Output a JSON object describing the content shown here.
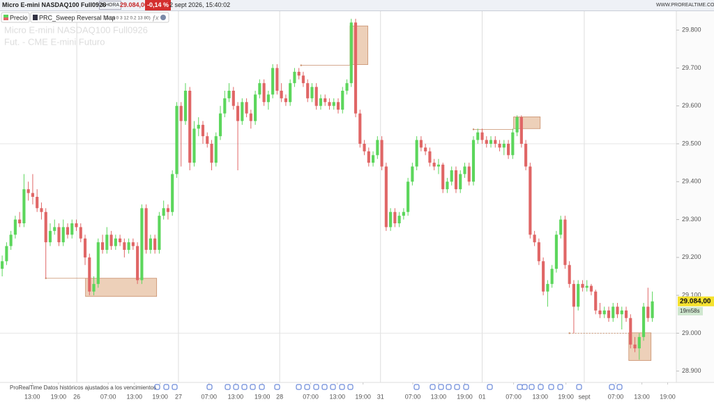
{
  "header": {
    "instrument": "Micro E-mini NASDAQ100 Full0926",
    "timeframe": "1 HORA",
    "price": "29.084,00",
    "change": "-0,14 %",
    "datetime": "2 sept 2026, 15:40:02",
    "site": "WWW.PROREALTIME.COM"
  },
  "legend": {
    "price": "Precio",
    "indicator": "PRC_Sweep Reversal Map",
    "params": "(5 14 0 3 12 0.2 13 80)"
  },
  "watermark": {
    "line1": "Micro E-mini NASDAQ100 Full0926",
    "line2": "Fut. - CME E-mini  Futuro"
  },
  "footer": "ProRealTime Datos históricos ajustados a los vencimientos",
  "chart_data": {
    "type": "candlestick",
    "up_color": "#5cd65c",
    "down_color": "#e06666",
    "zone_color": "#e8c4a8",
    "ylim": [
      28870,
      29850
    ],
    "yticks": [
      {
        "value": 28900,
        "label": "28.900"
      },
      {
        "value": 29000,
        "label": "29.000"
      },
      {
        "value": 29100,
        "label": "29.100"
      },
      {
        "value": 29200,
        "label": "29.200"
      },
      {
        "value": 29300,
        "label": "29.300"
      },
      {
        "value": 29400,
        "label": "29.400"
      },
      {
        "value": 29500,
        "label": "29.500"
      },
      {
        "value": 29600,
        "label": "29.600"
      },
      {
        "value": 29700,
        "label": "29.700"
      },
      {
        "value": 29800,
        "label": "29.800"
      }
    ],
    "xlim": [
      -0.5,
      154.5
    ],
    "xticks": [
      {
        "value": 6.9,
        "label": "13:00"
      },
      {
        "value": 12.9,
        "label": "19:00"
      },
      {
        "value": 17.1,
        "label": "26"
      },
      {
        "value": 24.3,
        "label": "07:00"
      },
      {
        "value": 30.3,
        "label": "13:00"
      },
      {
        "value": 36.2,
        "label": "19:00"
      },
      {
        "value": 40.4,
        "label": "27"
      },
      {
        "value": 47.4,
        "label": "07:00"
      },
      {
        "value": 53.5,
        "label": "13:00"
      },
      {
        "value": 59.6,
        "label": "19:00"
      },
      {
        "value": 63.6,
        "label": "28"
      },
      {
        "value": 70.7,
        "label": "07:00"
      },
      {
        "value": 76.8,
        "label": "13:00"
      },
      {
        "value": 82.7,
        "label": "19:00"
      },
      {
        "value": 86.7,
        "label": "31"
      },
      {
        "value": 94.1,
        "label": "07:00"
      },
      {
        "value": 100,
        "label": "13:00"
      },
      {
        "value": 106,
        "label": "19:00"
      },
      {
        "value": 110,
        "label": "01"
      },
      {
        "value": 117.2,
        "label": "07:00"
      },
      {
        "value": 123.3,
        "label": "13:00"
      },
      {
        "value": 129.2,
        "label": "19:00"
      },
      {
        "value": 133.4,
        "label": "sept"
      },
      {
        "value": 140.6,
        "label": "07:00"
      },
      {
        "value": 146.6,
        "label": "13:00"
      },
      {
        "value": 152.5,
        "label": "19:00"
      }
    ],
    "candles": [
      [
        29170,
        29205,
        29150,
        29190
      ],
      [
        29190,
        29240,
        29180,
        29230
      ],
      [
        29230,
        29270,
        29220,
        29260
      ],
      [
        29260,
        29310,
        29250,
        29300
      ],
      [
        29300,
        29320,
        29280,
        29290
      ],
      [
        29290,
        29420,
        29280,
        29380
      ],
      [
        29380,
        29400,
        29350,
        29370
      ],
      [
        29370,
        29420,
        29340,
        29360
      ],
      [
        29360,
        29380,
        29320,
        29330
      ],
      [
        29330,
        29345,
        29300,
        29320
      ],
      [
        29320,
        29330,
        29145,
        29240
      ],
      [
        29240,
        29290,
        29230,
        29270
      ],
      [
        29270,
        29300,
        29260,
        29280
      ],
      [
        29280,
        29290,
        29230,
        29240
      ],
      [
        29240,
        29300,
        29230,
        29280
      ],
      [
        29280,
        29290,
        29250,
        29260
      ],
      [
        29260,
        29300,
        29250,
        29290
      ],
      [
        29290,
        29300,
        29270,
        29280
      ],
      [
        29280,
        29290,
        29240,
        29250
      ],
      [
        29250,
        29260,
        29180,
        29200
      ],
      [
        29200,
        29210,
        29100,
        29110
      ],
      [
        29110,
        29150,
        29100,
        29130
      ],
      [
        29130,
        29250,
        29120,
        29240
      ],
      [
        29240,
        29260,
        29210,
        29220
      ],
      [
        29220,
        29280,
        29210,
        29260
      ],
      [
        29260,
        29270,
        29220,
        29230
      ],
      [
        29230,
        29260,
        29220,
        29250
      ],
      [
        29250,
        29260,
        29230,
        29240
      ],
      [
        29240,
        29250,
        29200,
        29220
      ],
      [
        29220,
        29250,
        29210,
        29240
      ],
      [
        29240,
        29250,
        29220,
        29230
      ],
      [
        29230,
        29240,
        29130,
        29140
      ],
      [
        29140,
        29340,
        29130,
        29330
      ],
      [
        29330,
        29340,
        29210,
        29220
      ],
      [
        29220,
        29260,
        29210,
        29250
      ],
      [
        29250,
        29260,
        29210,
        29220
      ],
      [
        29220,
        29320,
        29210,
        29310
      ],
      [
        29310,
        29350,
        29300,
        29330
      ],
      [
        29330,
        29340,
        29300,
        29320
      ],
      [
        29320,
        29430,
        29310,
        29420
      ],
      [
        29420,
        29610,
        29410,
        29600
      ],
      [
        29600,
        29610,
        29440,
        29560
      ],
      [
        29560,
        29660,
        29550,
        29640
      ],
      [
        29640,
        29650,
        29430,
        29450
      ],
      [
        29450,
        29560,
        29440,
        29540
      ],
      [
        29540,
        29570,
        29520,
        29550
      ],
      [
        29550,
        29560,
        29500,
        29520
      ],
      [
        29520,
        29530,
        29490,
        29500
      ],
      [
        29500,
        29510,
        29430,
        29450
      ],
      [
        29450,
        29530,
        29440,
        29520
      ],
      [
        29520,
        29600,
        29510,
        29580
      ],
      [
        29580,
        29640,
        29570,
        29620
      ],
      [
        29620,
        29660,
        29610,
        29640
      ],
      [
        29640,
        29650,
        29590,
        29600
      ],
      [
        29600,
        29610,
        29430,
        29560
      ],
      [
        29560,
        29620,
        29550,
        29610
      ],
      [
        29610,
        29620,
        29570,
        29580
      ],
      [
        29580,
        29590,
        29540,
        29560
      ],
      [
        29560,
        29640,
        29550,
        29630
      ],
      [
        29630,
        29670,
        29620,
        29660
      ],
      [
        29660,
        29670,
        29600,
        29610
      ],
      [
        29610,
        29640,
        29590,
        29630
      ],
      [
        29630,
        29710,
        29620,
        29700
      ],
      [
        29700,
        29710,
        29630,
        29640
      ],
      [
        29640,
        29660,
        29610,
        29620
      ],
      [
        29620,
        29630,
        29600,
        29610
      ],
      [
        29610,
        29670,
        29600,
        29660
      ],
      [
        29660,
        29700,
        29650,
        29690
      ],
      [
        29690,
        29700,
        29670,
        29680
      ],
      [
        29680,
        29690,
        29650,
        29660
      ],
      [
        29660,
        29670,
        29610,
        29620
      ],
      [
        29620,
        29660,
        29610,
        29650
      ],
      [
        29650,
        29660,
        29590,
        29600
      ],
      [
        29600,
        29630,
        29590,
        29620
      ],
      [
        29620,
        29630,
        29600,
        29610
      ],
      [
        29610,
        29620,
        29590,
        29600
      ],
      [
        29600,
        29620,
        29590,
        29610
      ],
      [
        29610,
        29620,
        29580,
        29590
      ],
      [
        29590,
        29650,
        29580,
        29640
      ],
      [
        29640,
        29670,
        29630,
        29660
      ],
      [
        29660,
        29830,
        29650,
        29820
      ],
      [
        29820,
        29830,
        29570,
        29580
      ],
      [
        29580,
        29590,
        29490,
        29500
      ],
      [
        29500,
        29510,
        29470,
        29480
      ],
      [
        29480,
        29490,
        29440,
        29450
      ],
      [
        29450,
        29480,
        29440,
        29470
      ],
      [
        29470,
        29520,
        29460,
        29510
      ],
      [
        29510,
        29520,
        29430,
        29440
      ],
      [
        29440,
        29450,
        29270,
        29280
      ],
      [
        29280,
        29330,
        29270,
        29320
      ],
      [
        29320,
        29330,
        29280,
        29290
      ],
      [
        29290,
        29320,
        29280,
        29310
      ],
      [
        29310,
        29330,
        29300,
        29320
      ],
      [
        29320,
        29410,
        29310,
        29400
      ],
      [
        29400,
        29450,
        29390,
        29440
      ],
      [
        29440,
        29520,
        29430,
        29510
      ],
      [
        29510,
        29520,
        29480,
        29490
      ],
      [
        29490,
        29500,
        29470,
        29480
      ],
      [
        29480,
        29490,
        29440,
        29450
      ],
      [
        29450,
        29460,
        29430,
        29440
      ],
      [
        29440,
        29460,
        29420,
        29445
      ],
      [
        29445,
        29450,
        29370,
        29380
      ],
      [
        29380,
        29410,
        29370,
        29400
      ],
      [
        29400,
        29440,
        29390,
        29430
      ],
      [
        29430,
        29440,
        29370,
        29380
      ],
      [
        29380,
        29430,
        29370,
        29420
      ],
      [
        29420,
        29450,
        29410,
        29440
      ],
      [
        29440,
        29450,
        29390,
        29400
      ],
      [
        29400,
        29520,
        29390,
        29510
      ],
      [
        29510,
        29540,
        29500,
        29530
      ],
      [
        29530,
        29540,
        29500,
        29510
      ],
      [
        29510,
        29520,
        29490,
        29500
      ],
      [
        29500,
        29520,
        29490,
        29510
      ],
      [
        29510,
        29520,
        29490,
        29500
      ],
      [
        29500,
        29510,
        29480,
        29490
      ],
      [
        29490,
        29510,
        29470,
        29500
      ],
      [
        29500,
        29510,
        29460,
        29470
      ],
      [
        29470,
        29540,
        29460,
        29530
      ],
      [
        29530,
        29575,
        29520,
        29570
      ],
      [
        29570,
        29575,
        29490,
        29500
      ],
      [
        29500,
        29510,
        29430,
        29440
      ],
      [
        29440,
        29450,
        29250,
        29260
      ],
      [
        29260,
        29270,
        29230,
        29240
      ],
      [
        29240,
        29250,
        29180,
        29190
      ],
      [
        29190,
        29200,
        29100,
        29110
      ],
      [
        29110,
        29140,
        29070,
        29130
      ],
      [
        29130,
        29180,
        29120,
        29170
      ],
      [
        29170,
        29270,
        29160,
        29260
      ],
      [
        29260,
        29310,
        29250,
        29300
      ],
      [
        29300,
        29310,
        29170,
        29180
      ],
      [
        29180,
        29190,
        29120,
        29130
      ],
      [
        29130,
        29140,
        29000,
        29070
      ],
      [
        29070,
        29140,
        29060,
        29130
      ],
      [
        29130,
        29140,
        29110,
        29120
      ],
      [
        29120,
        29140,
        29110,
        29125
      ],
      [
        29125,
        29130,
        29100,
        29110
      ],
      [
        29110,
        29115,
        29050,
        29060
      ],
      [
        29060,
        29080,
        29040,
        29050
      ],
      [
        29050,
        29070,
        29040,
        29060
      ],
      [
        29060,
        29070,
        29030,
        29040
      ],
      [
        29040,
        29080,
        29030,
        29070
      ],
      [
        29070,
        29080,
        29040,
        29050
      ],
      [
        29050,
        29070,
        29010,
        29060
      ],
      [
        29060,
        29070,
        29030,
        29040
      ],
      [
        29040,
        29050,
        28960,
        28970
      ],
      [
        28970,
        28990,
        28950,
        28960
      ],
      [
        28960,
        29000,
        28930,
        28990
      ],
      [
        28990,
        29080,
        28980,
        29070
      ],
      [
        29070,
        29120,
        29030,
        29040
      ],
      [
        29040,
        29110,
        29030,
        29084
      ]
    ],
    "zones": [
      {
        "x1": 19.1,
        "x2": 35.4,
        "low": 29097,
        "high": 29145
      },
      {
        "x1": 79.7,
        "x2": 83.8,
        "low": 29709,
        "high": 29811
      },
      {
        "x1": 117.2,
        "x2": 123.3,
        "low": 29540,
        "high": 29571
      },
      {
        "x1": 143.6,
        "x2": 148.7,
        "low": 28928,
        "high": 29001
      }
    ],
    "sweep_lines": [
      {
        "x1": 10,
        "x2": 19.1,
        "level": 29145
      },
      {
        "x1": 68.5,
        "x2": 79.7,
        "level": 29707
      },
      {
        "x1": 108,
        "x2": 117.2,
        "level": 29538
      },
      {
        "x1": 130,
        "x2": 143.6,
        "level": 29000
      }
    ],
    "ref_lines": [
      29500,
      29000
    ],
    "last_price_label": "29.084,00",
    "countdown": "19m58s"
  }
}
